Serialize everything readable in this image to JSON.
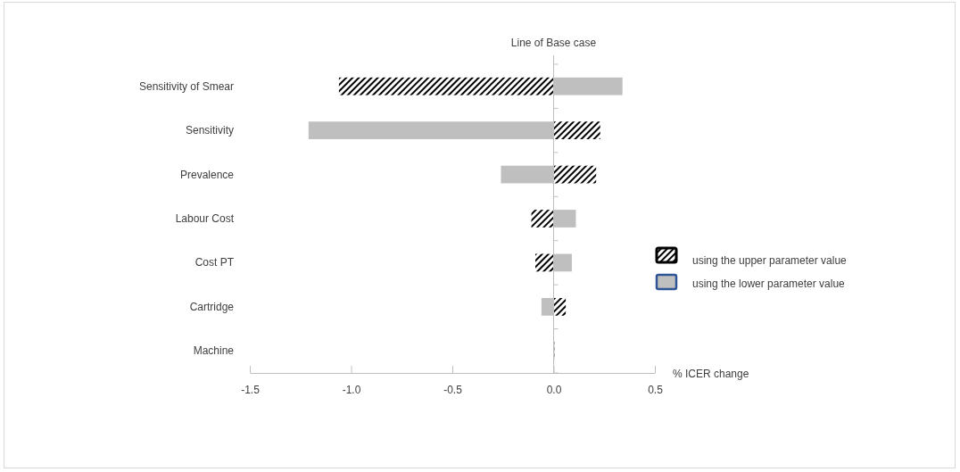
{
  "chart_data": {
    "type": "bar",
    "orientation": "horizontal",
    "stacked": true,
    "xlabel": "% ICER change",
    "categories": [
      "Sensitivity of Smear",
      "Sensitivity",
      "Prevalence",
      "Labour Cost",
      "Cost PT",
      "Cartridge",
      "Machine"
    ],
    "series": [
      {
        "name": "using the upper parameter value",
        "color": "#000000",
        "values": [
          -1.06,
          0.23,
          0.21,
          -0.11,
          -0.09,
          0.06,
          0
        ]
      },
      {
        "name": "using the lower parameter value",
        "color": "#bfbfbf",
        "values": [
          0.34,
          -1.21,
          -0.26,
          0.11,
          0.09,
          -0.06,
          0
        ]
      }
    ],
    "xlim": [
      -1.5,
      0.5
    ],
    "xticks": [
      -1.5,
      {
        "value": -1,
        "label": "-1.0"
      },
      {
        "value": -0.5,
        "label": "-0.5"
      },
      {
        "value": 0,
        "label": "0.0"
      },
      0.5
    ],
    "ref_lines": [
      {
        "axis": "x",
        "value": 0,
        "label": "Line of Base case"
      }
    ],
    "legend": "right"
  }
}
